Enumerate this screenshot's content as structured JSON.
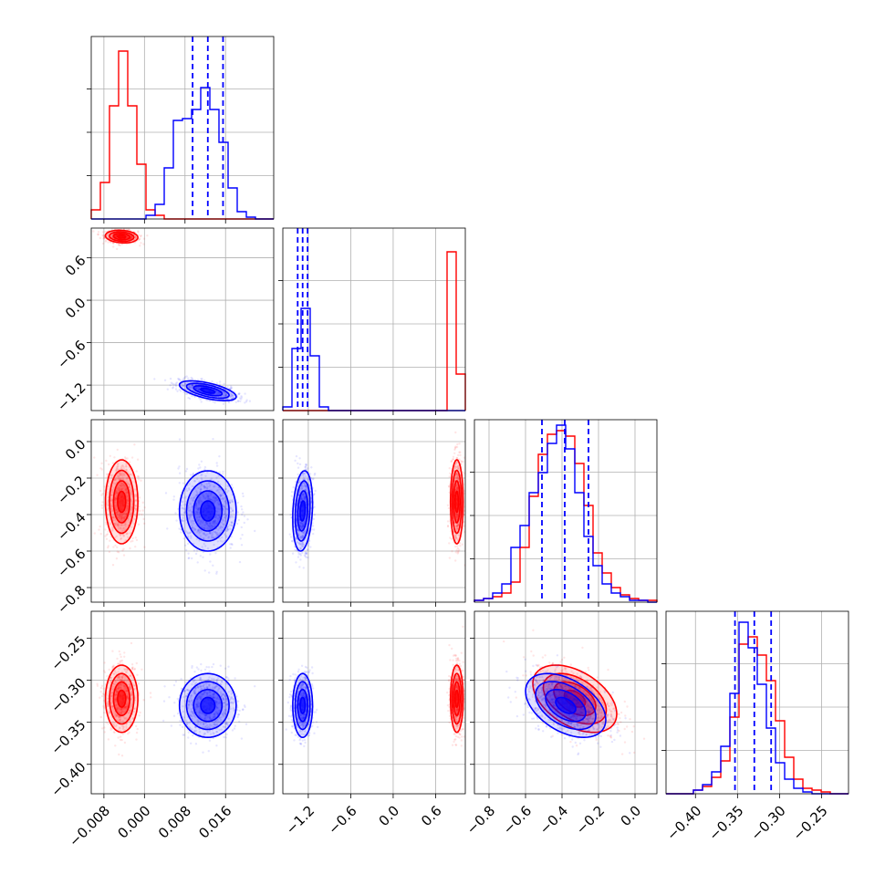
{
  "colors": {
    "series_a": "#ff0000",
    "series_b": "#0000ff",
    "grid": "#b0b0b0"
  },
  "chart_data": {
    "type": "corner-plot",
    "grid": true,
    "legend": "none",
    "parameters": [
      {
        "range": [
          -0.0105,
          0.0255
        ],
        "ticks": [
          -0.008,
          0.0,
          0.008,
          0.016
        ],
        "tick_labels": [
          "−0.008",
          "0.000",
          "0.008",
          "0.016"
        ]
      },
      {
        "range": [
          -1.56,
          1.02
        ],
        "ticks": [
          -1.2,
          -0.6,
          0.0,
          0.6
        ],
        "tick_labels": [
          "−1.2",
          "−0.6",
          "0.0",
          "0.6"
        ]
      },
      {
        "range": [
          -0.88,
          0.12
        ],
        "ticks": [
          -0.8,
          -0.6,
          -0.4,
          -0.2,
          0.0
        ],
        "tick_labels": [
          "−0.8",
          "−0.6",
          "−0.4",
          "−0.2",
          "0.0"
        ]
      },
      {
        "range": [
          -0.435,
          -0.218
        ],
        "ticks": [
          -0.4,
          -0.35,
          -0.3,
          -0.25
        ],
        "tick_labels": [
          "−0.40",
          "−0.35",
          "−0.30",
          "−0.25"
        ]
      }
    ],
    "series": [
      {
        "color": "#ff0000",
        "mean": [
          -0.0045,
          0.9,
          -0.33,
          -0.322
        ],
        "sd": [
          0.0016,
          0.045,
          0.115,
          0.02
        ],
        "corr": [
          [
            0,
            1,
            -0.15
          ],
          [
            2,
            3,
            -0.45
          ]
        ]
      },
      {
        "color": "#0000ff",
        "mean": [
          0.0125,
          -1.28,
          -0.38,
          -0.33
        ],
        "sd": [
          0.0028,
          0.07,
          0.11,
          0.019
        ],
        "corr": [
          [
            0,
            1,
            -0.6
          ],
          [
            2,
            3,
            -0.45
          ],
          [
            1,
            2,
            0.2
          ]
        ]
      }
    ],
    "quantile_lines": {
      "color": "#0000ff",
      "values": [
        [
          0.0095,
          0.0125,
          0.0155
        ],
        [
          -1.35,
          -1.28,
          -1.21
        ],
        [
          -0.51,
          -0.385,
          -0.255
        ],
        [
          -0.353,
          -0.33,
          -0.31
        ]
      ]
    },
    "histograms": [
      {
        "param": 0,
        "red": [
          0.05,
          0.2,
          0.62,
          0.92,
          0.62,
          0.3,
          0.05,
          0.02,
          0,
          0,
          0,
          0,
          0,
          0,
          0,
          0,
          0,
          0,
          0,
          0
        ],
        "blue": [
          0,
          0,
          0,
          0,
          0,
          0,
          0.02,
          0.08,
          0.28,
          0.54,
          0.55,
          0.6,
          0.72,
          0.6,
          0.42,
          0.17,
          0.04,
          0.01,
          0,
          0
        ]
      },
      {
        "param": 1,
        "red": [
          0,
          0,
          0,
          0,
          0,
          0,
          0,
          0,
          0,
          0,
          0,
          0,
          0,
          0,
          0,
          0,
          0,
          0,
          0.87,
          0.2
        ],
        "blue": [
          0.02,
          0.34,
          0.56,
          0.3,
          0.02,
          0,
          0,
          0,
          0,
          0,
          0,
          0,
          0,
          0,
          0,
          0,
          0,
          0,
          0,
          0
        ]
      },
      {
        "param": 2,
        "red": [
          0.01,
          0.02,
          0.03,
          0.05,
          0.11,
          0.3,
          0.58,
          0.81,
          0.92,
          0.94,
          0.91,
          0.76,
          0.53,
          0.27,
          0.16,
          0.08,
          0.04,
          0.02,
          0.01,
          0.01
        ],
        "blue": [
          0.01,
          0.02,
          0.05,
          0.1,
          0.3,
          0.42,
          0.6,
          0.71,
          0.87,
          0.97,
          0.84,
          0.6,
          0.36,
          0.2,
          0.1,
          0.05,
          0.03,
          0.01,
          0.01,
          0
        ]
      },
      {
        "param": 3,
        "red": [
          0,
          0,
          0,
          0.02,
          0.04,
          0.09,
          0.18,
          0.42,
          0.82,
          0.86,
          0.76,
          0.62,
          0.4,
          0.2,
          0.08,
          0.03,
          0.02,
          0.01,
          0,
          0
        ],
        "blue": [
          0,
          0,
          0,
          0.02,
          0.05,
          0.12,
          0.26,
          0.55,
          0.94,
          0.8,
          0.6,
          0.36,
          0.17,
          0.08,
          0.03,
          0.01,
          0,
          0,
          0,
          0
        ]
      }
    ]
  }
}
